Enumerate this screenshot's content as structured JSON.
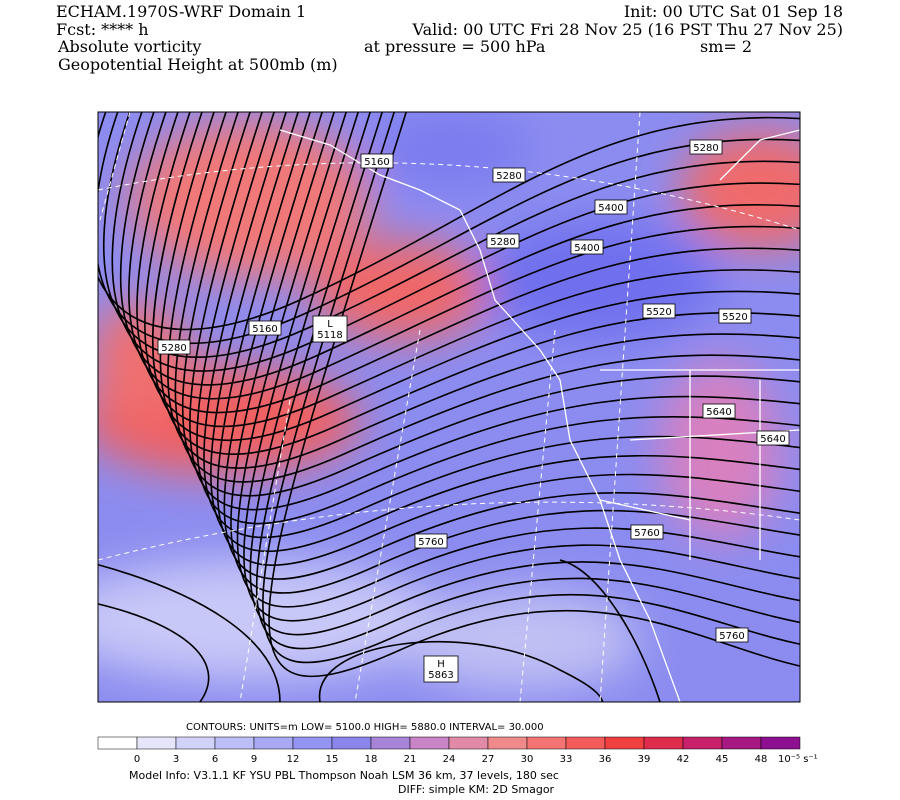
{
  "header": {
    "model": "ECHAM.1970S-WRF Domain 1",
    "init": "Init: 00 UTC Sat 01 Sep 18",
    "fcst": "Fcst: **** h",
    "valid": "Valid: 00 UTC Fri 28 Nov 25 (16 PST Thu 27 Nov 25)",
    "field1": "Absolute vorticity",
    "pressure": "at pressure =  500 hPa",
    "sm": "sm= 2",
    "field2": "Geopotential Height at 500mb (m)"
  },
  "map": {
    "contour_labels": [
      "5160",
      "5280",
      "5280",
      "5400",
      "5280",
      "5400",
      "5160",
      "5280",
      "5520",
      "5520",
      "5640",
      "5640",
      "5760",
      "5760",
      "5760"
    ],
    "low": {
      "letter": "L",
      "value": "5118"
    },
    "high": {
      "letter": "H",
      "value": "5863"
    }
  },
  "footer": {
    "contours": "CONTOURS:  UNITS=m  LOW=   5100.0     HIGH=   5880.0     INTERVAL=    30.000",
    "colorbar_ticks": [
      "0",
      "3",
      "6",
      "9",
      "12",
      "15",
      "18",
      "21",
      "24",
      "27",
      "30",
      "33",
      "36",
      "39",
      "42",
      "45",
      "48"
    ],
    "colorbar_units": "10⁻⁵ s⁻¹",
    "model_info": "Model Info: V3.1.1    KF     YSU PBL   Thompson     Noah LSM   36 km,    37 levels,   180 sec",
    "diff": "DIFF: simple KM: 2D Smagor"
  }
}
